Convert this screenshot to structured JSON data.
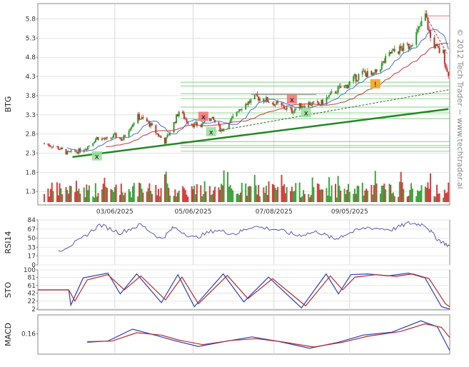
{
  "watermark": "© 2012 Tech Trader ~ www.techtrader.ai",
  "chart_data": [
    {
      "type": "candlestick",
      "panel": "price",
      "ylabel": "BTG",
      "yticks": [
        1.3,
        1.8,
        2.3,
        2.8,
        3.3,
        3.8,
        4.3,
        4.8,
        5.3,
        5.8
      ],
      "ylim": [
        0.95,
        6.2
      ],
      "xticks": [
        "03/06/2025",
        "05/06/2025",
        "07/08/2025",
        "09/05/2025"
      ],
      "close_path": [
        [
          "2025-01-10",
          2.55
        ],
        [
          "2025-01-20",
          2.45
        ],
        [
          "2025-01-28",
          2.3
        ],
        [
          "2025-02-05",
          2.35
        ],
        [
          "2025-02-12",
          2.45
        ],
        [
          "2025-02-20",
          2.7
        ],
        [
          "2025-02-28",
          2.65
        ],
        [
          "2025-03-06",
          2.75
        ],
        [
          "2025-03-12",
          2.65
        ],
        [
          "2025-03-18",
          3.0
        ],
        [
          "2025-03-24",
          3.25
        ],
        [
          "2025-04-01",
          3.1
        ],
        [
          "2025-04-08",
          2.8
        ],
        [
          "2025-04-14",
          2.6
        ],
        [
          "2025-04-20",
          3.0
        ],
        [
          "2025-04-25",
          3.4
        ],
        [
          "2025-05-01",
          3.15
        ],
        [
          "2025-05-06",
          3.05
        ],
        [
          "2025-05-12",
          3.0
        ],
        [
          "2025-05-16",
          3.25
        ],
        [
          "2025-05-22",
          3.15
        ],
        [
          "2025-05-28",
          2.9
        ],
        [
          "2025-06-03",
          3.05
        ],
        [
          "2025-06-10",
          3.45
        ],
        [
          "2025-06-17",
          3.6
        ],
        [
          "2025-06-24",
          3.75
        ],
        [
          "2025-07-01",
          3.7
        ],
        [
          "2025-07-08",
          3.6
        ],
        [
          "2025-07-15",
          3.5
        ],
        [
          "2025-07-22",
          3.4
        ],
        [
          "2025-07-29",
          3.55
        ],
        [
          "2025-08-05",
          3.6
        ],
        [
          "2025-08-12",
          3.55
        ],
        [
          "2025-08-19",
          3.75
        ],
        [
          "2025-08-26",
          3.95
        ],
        [
          "2025-09-02",
          4.05
        ],
        [
          "2025-09-09",
          4.25
        ],
        [
          "2025-09-16",
          4.4
        ],
        [
          "2025-09-23",
          4.3
        ],
        [
          "2025-09-30",
          4.6
        ],
        [
          "2025-10-07",
          4.9
        ],
        [
          "2025-10-14",
          5.0
        ],
        [
          "2025-10-21",
          5.1
        ],
        [
          "2025-10-28",
          5.45
        ],
        [
          "2025-11-03",
          5.9
        ],
        [
          "2025-11-07",
          5.3
        ],
        [
          "2025-11-12",
          5.0
        ],
        [
          "2025-11-17",
          4.9
        ],
        [
          "2025-11-20",
          4.4
        ]
      ],
      "support_trend": [
        [
          "2025-02-01",
          2.2
        ],
        [
          "2025-11-21",
          3.45
        ]
      ],
      "dashed_trend": [
        [
          "2025-05-20",
          2.85
        ],
        [
          "2025-11-21",
          3.95
        ]
      ],
      "resistance_lines": [
        4.15,
        4.05,
        3.85,
        3.72,
        3.5,
        3.35,
        3.2,
        2.6,
        2.5,
        2.45,
        2.35
      ],
      "signals": [
        {
          "label": "x",
          "date": "2025-02-20",
          "price": 2.22,
          "color": "#9fe09f"
        },
        {
          "label": "x",
          "date": "2025-05-14",
          "price": 3.25,
          "color": "#f07a7a"
        },
        {
          "label": "x",
          "date": "2025-05-20",
          "price": 2.85,
          "color": "#9fe09f"
        },
        {
          "label": "x",
          "date": "2025-07-22",
          "price": 3.7,
          "color": "#f07a7a"
        },
        {
          "label": "x",
          "date": "2025-08-02",
          "price": 3.35,
          "color": "#9fe09f"
        },
        {
          "label": "!",
          "date": "2025-09-25",
          "price": 4.1,
          "color": "#f5a623"
        }
      ],
      "colors": {
        "up": "#2b9a2b",
        "down": "#d42a2a",
        "ma_short": "#4a6fd0",
        "ma_long": "#c23a3a",
        "trend": "#1f8a1f"
      }
    },
    {
      "type": "line",
      "panel": "rsi",
      "ylabel": "RSI14",
      "yticks": [
        0,
        17,
        33,
        50,
        67,
        84
      ],
      "ylim": [
        0,
        84
      ],
      "series": [
        {
          "values": [
            [
              0.05,
              26
            ],
            [
              0.1,
              45
            ],
            [
              0.15,
              75
            ],
            [
              0.2,
              60
            ],
            [
              0.25,
              75
            ],
            [
              0.3,
              48
            ],
            [
              0.33,
              70
            ],
            [
              0.38,
              50
            ],
            [
              0.43,
              65
            ],
            [
              0.48,
              58
            ],
            [
              0.52,
              72
            ],
            [
              0.58,
              66
            ],
            [
              0.63,
              55
            ],
            [
              0.68,
              62
            ],
            [
              0.72,
              48
            ],
            [
              0.75,
              58
            ],
            [
              0.8,
              70
            ],
            [
              0.86,
              66
            ],
            [
              0.9,
              78
            ],
            [
              0.94,
              75
            ],
            [
              0.97,
              48
            ],
            [
              1.0,
              35
            ]
          ]
        }
      ]
    },
    {
      "type": "line",
      "panel": "sto",
      "ylabel": "STO",
      "yticks": [
        2,
        22,
        42,
        61,
        81,
        100
      ],
      "ylim": [
        0,
        100
      ],
      "series": [
        {
          "values": [
            [
              0,
              50
            ],
            [
              0.075,
              50
            ],
            [
              0.08,
              12
            ],
            [
              0.11,
              80
            ],
            [
              0.17,
              92
            ],
            [
              0.2,
              40
            ],
            [
              0.24,
              90
            ],
            [
              0.3,
              18
            ],
            [
              0.34,
              88
            ],
            [
              0.38,
              8
            ],
            [
              0.45,
              90
            ],
            [
              0.5,
              20
            ],
            [
              0.56,
              82
            ],
            [
              0.64,
              5
            ],
            [
              0.7,
              90
            ],
            [
              0.73,
              40
            ],
            [
              0.76,
              88
            ],
            [
              0.8,
              90
            ],
            [
              0.85,
              85
            ],
            [
              0.9,
              92
            ],
            [
              0.94,
              80
            ],
            [
              0.98,
              8
            ],
            [
              1.0,
              2
            ]
          ]
        },
        {
          "values": [
            [
              0,
              50
            ],
            [
              0.075,
              50
            ],
            [
              0.09,
              22
            ],
            [
              0.12,
              75
            ],
            [
              0.17,
              88
            ],
            [
              0.21,
              50
            ],
            [
              0.25,
              85
            ],
            [
              0.31,
              25
            ],
            [
              0.35,
              82
            ],
            [
              0.39,
              15
            ],
            [
              0.46,
              86
            ],
            [
              0.51,
              28
            ],
            [
              0.57,
              78
            ],
            [
              0.65,
              10
            ],
            [
              0.71,
              85
            ],
            [
              0.74,
              50
            ],
            [
              0.77,
              82
            ],
            [
              0.82,
              88
            ],
            [
              0.87,
              84
            ],
            [
              0.91,
              90
            ],
            [
              0.95,
              78
            ],
            [
              0.99,
              15
            ],
            [
              1.0,
              8
            ]
          ]
        }
      ]
    },
    {
      "type": "line",
      "panel": "macd",
      "ylabel": "MACD",
      "yticks": [
        0.16
      ],
      "ylim": [
        -0.18,
        0.48
      ],
      "series": [
        {
          "values": [
            [
              0.12,
              0.02
            ],
            [
              0.17,
              0.04
            ],
            [
              0.23,
              0.24
            ],
            [
              0.29,
              0.13
            ],
            [
              0.33,
              0.05
            ],
            [
              0.39,
              -0.05
            ],
            [
              0.46,
              0.04
            ],
            [
              0.52,
              0.11
            ],
            [
              0.58,
              0.04
            ],
            [
              0.66,
              -0.08
            ],
            [
              0.73,
              0.02
            ],
            [
              0.79,
              0.14
            ],
            [
              0.86,
              0.19
            ],
            [
              0.93,
              0.38
            ],
            [
              0.97,
              0.28
            ],
            [
              1.0,
              -0.12
            ]
          ]
        },
        {
          "values": [
            [
              0.12,
              0.03
            ],
            [
              0.18,
              0.04
            ],
            [
              0.24,
              0.18
            ],
            [
              0.3,
              0.14
            ],
            [
              0.34,
              0.06
            ],
            [
              0.4,
              -0.02
            ],
            [
              0.47,
              0.05
            ],
            [
              0.53,
              0.08
            ],
            [
              0.59,
              0.03
            ],
            [
              0.67,
              -0.06
            ],
            [
              0.74,
              0.02
            ],
            [
              0.8,
              0.12
            ],
            [
              0.88,
              0.2
            ],
            [
              0.94,
              0.33
            ],
            [
              0.98,
              0.27
            ],
            [
              1.0,
              0.1
            ]
          ]
        }
      ]
    }
  ]
}
